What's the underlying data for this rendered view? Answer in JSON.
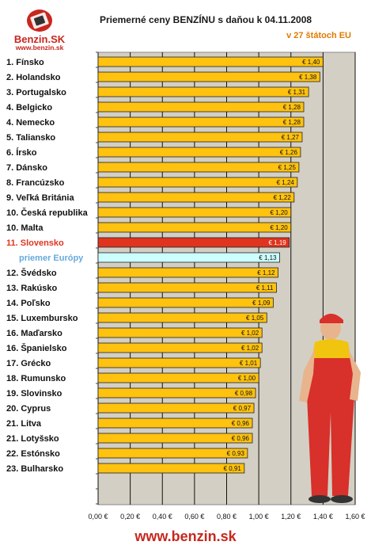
{
  "header": {
    "title": "Priemerné ceny BENZÍNU s daňou k 04.11.2008",
    "subtitle": "v 27 štátoch EU"
  },
  "logo": {
    "brand": "Benzin.SK",
    "url": "www.benzin.sk"
  },
  "footer": {
    "url": "www.benzin.sk"
  },
  "colors": {
    "bar": "#ffc20e",
    "highlight_bar": "#e1341e",
    "average_bar": "#ccffff",
    "plot_bg": "#d4cfc4",
    "highlight_label": "#e1341e",
    "average_label": "#66aadd"
  },
  "chart_data": {
    "type": "bar",
    "orientation": "horizontal",
    "title": "Priemerné ceny BENZÍNU s daňou k 04.11.2008",
    "subtitle": "v 27 štátoch EU",
    "xlim": [
      0,
      1.6
    ],
    "xticks": [
      "0,00 €",
      "0,20 €",
      "0,40 €",
      "0,60 €",
      "0,80 €",
      "1,00 €",
      "1,20 €",
      "1,40 €",
      "1,60 €"
    ],
    "grid": true,
    "categories": [
      "1. Fínsko",
      "2. Holandsko",
      "3. Portugalsko",
      "4. Belgicko",
      "4. Nemecko",
      "5. Taliansko",
      "6. Írsko",
      "7. Dánsko",
      "8. Francúzsko",
      "9. Veľká Británia",
      "10. Česká republika",
      "10. Malta",
      "11. Slovensko",
      "priemer Európy",
      "12. Švédsko",
      "13. Rakúsko",
      "14. Poľsko",
      "15. Luxembursko",
      "16. Maďarsko",
      "16. Španielsko",
      "17. Grécko",
      "18. Rumunsko",
      "19. Slovinsko",
      "20. Cyprus",
      "21. Litva",
      "21. Lotyšsko",
      "22. Estónsko",
      "23. Bulharsko"
    ],
    "values": [
      1.4,
      1.38,
      1.31,
      1.28,
      1.28,
      1.27,
      1.26,
      1.25,
      1.24,
      1.22,
      1.2,
      1.2,
      1.19,
      1.13,
      1.12,
      1.11,
      1.09,
      1.05,
      1.02,
      1.02,
      1.01,
      1.0,
      0.98,
      0.97,
      0.96,
      0.96,
      0.93,
      0.91
    ],
    "value_labels": [
      "€ 1,40",
      "€ 1,38",
      "€ 1,31",
      "€ 1,28",
      "€ 1,28",
      "€ 1,27",
      "€ 1,26",
      "€ 1,25",
      "€ 1,24",
      "€ 1,22",
      "€ 1,20",
      "€ 1,20",
      "€ 1,19",
      "€ 1,13",
      "€ 1,12",
      "€ 1,11",
      "€ 1,09",
      "€ 1,05",
      "€ 1,02",
      "€ 1,02",
      "€ 1,01",
      "€ 1,00",
      "€ 0,98",
      "€ 0,97",
      "€ 0,96",
      "€ 0,96",
      "€ 0,93",
      "€ 0,91"
    ],
    "highlight": "11. Slovensko",
    "average": "priemer Európy"
  }
}
